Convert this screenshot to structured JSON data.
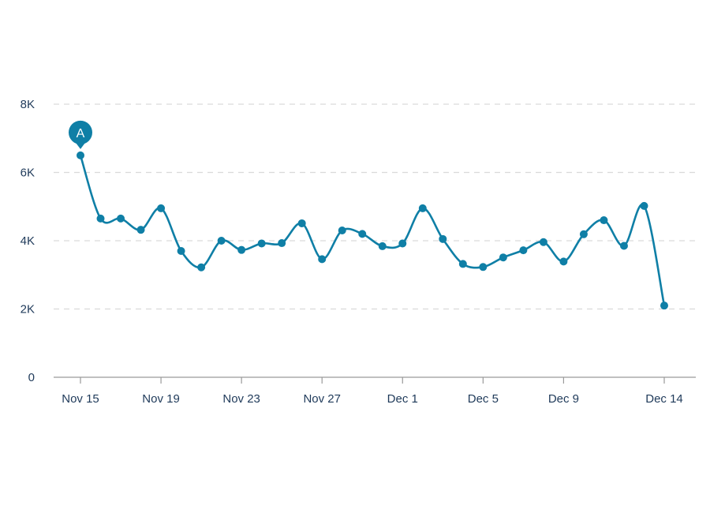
{
  "chart_data": {
    "type": "line",
    "title": "",
    "xlabel": "",
    "ylabel": "",
    "x": [
      "Nov 15",
      "Nov 16",
      "Nov 17",
      "Nov 18",
      "Nov 19",
      "Nov 20",
      "Nov 21",
      "Nov 22",
      "Nov 23",
      "Nov 24",
      "Nov 25",
      "Nov 26",
      "Nov 27",
      "Nov 28",
      "Nov 29",
      "Nov 30",
      "Dec 1",
      "Dec 2",
      "Dec 3",
      "Dec 4",
      "Dec 5",
      "Dec 6",
      "Dec 7",
      "Dec 8",
      "Dec 9",
      "Dec 10",
      "Dec 11",
      "Dec 12",
      "Dec 13",
      "Dec 14"
    ],
    "series": [
      {
        "values": [
          6500,
          4650,
          4650,
          4320,
          4950,
          3700,
          3220,
          4000,
          3730,
          3920,
          3930,
          4510,
          3460,
          4300,
          4200,
          3840,
          3920,
          4950,
          4050,
          3320,
          3230,
          3510,
          3720,
          3960,
          3390,
          4190,
          4600,
          3850,
          5020,
          2100
        ]
      }
    ],
    "ylim": [
      0,
      8000
    ],
    "y_ticks": [
      {
        "value": 0,
        "label": "0"
      },
      {
        "value": 2000,
        "label": "2K"
      },
      {
        "value": 4000,
        "label": "4K"
      },
      {
        "value": 6000,
        "label": "6K"
      },
      {
        "value": 8000,
        "label": "8K"
      }
    ],
    "x_ticks": [
      {
        "index": 0,
        "label": "Nov 15"
      },
      {
        "index": 4,
        "label": "Nov 19"
      },
      {
        "index": 8,
        "label": "Nov 23"
      },
      {
        "index": 12,
        "label": "Nov 27"
      },
      {
        "index": 16,
        "label": "Dec 1"
      },
      {
        "index": 20,
        "label": "Dec 5"
      },
      {
        "index": 24,
        "label": "Dec 9"
      },
      {
        "index": 29,
        "label": "Dec 14"
      }
    ],
    "grid": true,
    "annotations": [
      {
        "index": 0,
        "label": "A"
      }
    ],
    "colors": {
      "line": "#0f7fa6",
      "marker": "#0f7fa6",
      "annotation": "#0f7fa6"
    }
  }
}
